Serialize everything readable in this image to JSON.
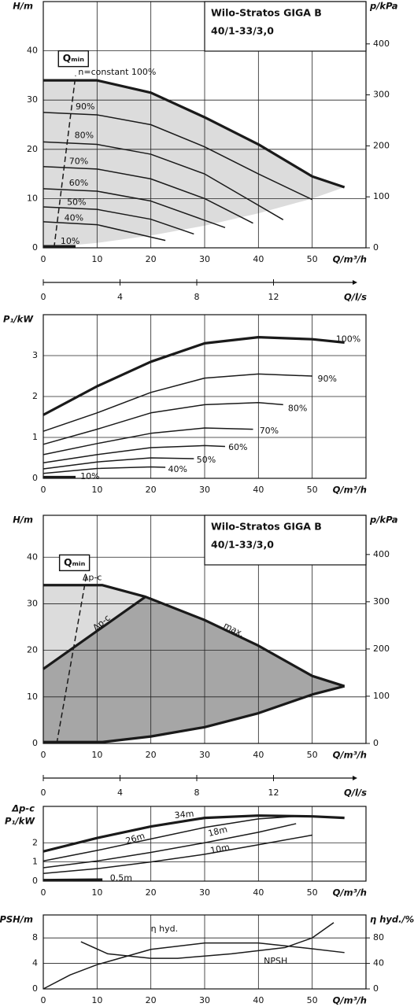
{
  "chart_data": [
    {
      "type": "line",
      "title": "Wilo-Stratos GIGA B",
      "subtitle": "40/1-33/3,0",
      "x_label": "Q/m³/h",
      "y_label": "H/m",
      "y2_label": "p/kPa",
      "xlim": [
        0,
        60
      ],
      "xticks": [
        0,
        10,
        20,
        30,
        40,
        50
      ],
      "ylim": [
        0,
        50
      ],
      "yticks": [
        0,
        10,
        20,
        30,
        40
      ],
      "y2lim": [
        0,
        483
      ],
      "y2ticks": [
        0,
        100,
        200,
        300,
        400
      ],
      "grid": true,
      "regions": [
        {
          "color": "#dcdcdc",
          "x": [
            0,
            10,
            20,
            30,
            40,
            50,
            56,
            50,
            40,
            30,
            20,
            10,
            0
          ],
          "values": [
            34,
            34,
            31.5,
            26.5,
            21,
            14.5,
            12.3,
            10,
            7,
            4.5,
            2.5,
            1,
            0
          ]
        }
      ],
      "series": [
        {
          "name": "n=constant 100%",
          "color": "#1a1a1a",
          "line_width": 3.2,
          "x": [
            0,
            10,
            20,
            30,
            40,
            50,
            56
          ],
          "values": [
            34,
            34,
            31.5,
            26.5,
            21,
            14.5,
            12.3
          ]
        },
        {
          "name": "90%",
          "color": "#1a1a1a",
          "x": [
            0,
            10,
            20,
            30,
            40,
            50
          ],
          "values": [
            27.5,
            27,
            25,
            20.5,
            15,
            9.8
          ]
        },
        {
          "name": "80%",
          "color": "#1a1a1a",
          "x": [
            0,
            10,
            20,
            30,
            44.6
          ],
          "values": [
            21.5,
            21,
            19,
            15,
            5.7
          ]
        },
        {
          "name": "70%",
          "color": "#1a1a1a",
          "x": [
            0,
            10,
            20,
            30,
            39
          ],
          "values": [
            16.5,
            16,
            14,
            10,
            5
          ]
        },
        {
          "name": "60%",
          "color": "#1a1a1a",
          "x": [
            0,
            10,
            20,
            33.8
          ],
          "values": [
            12,
            11.5,
            9.5,
            4.1
          ]
        },
        {
          "name": "50%",
          "color": "#1a1a1a",
          "x": [
            0,
            10,
            20,
            28
          ],
          "values": [
            8.3,
            7.8,
            5.8,
            2.8
          ]
        },
        {
          "name": "40%",
          "color": "#1a1a1a",
          "x": [
            0,
            10,
            22.7
          ],
          "values": [
            5.3,
            4.7,
            1.5
          ]
        },
        {
          "name": "10%",
          "color": "#1a1a1a",
          "line_width": 3.2,
          "x": [
            0,
            6
          ],
          "values": [
            0.3,
            0.3
          ]
        },
        {
          "name": "Qₘᵢₙ",
          "color": "#1a1a1a",
          "dashed": true,
          "x": [
            2,
            6
          ],
          "values": [
            0,
            35
          ]
        }
      ]
    },
    {
      "type": "axis",
      "x_label": "Q/l/s",
      "xlim": [
        0,
        16
      ],
      "xticks": [
        0,
        4,
        8,
        12
      ]
    },
    {
      "type": "line",
      "x_label": "Q/m³/h",
      "y_label": "P₁/kW",
      "xlim": [
        0,
        60
      ],
      "xticks": [
        0,
        10,
        20,
        30,
        40,
        50
      ],
      "ylim": [
        0,
        4
      ],
      "yticks": [
        0,
        1,
        2,
        3
      ],
      "grid": true,
      "series": [
        {
          "name": "100%",
          "color": "#1a1a1a",
          "line_width": 3.2,
          "x": [
            0,
            10,
            20,
            30,
            40,
            50,
            56
          ],
          "values": [
            1.55,
            2.25,
            2.85,
            3.3,
            3.45,
            3.4,
            3.32
          ]
        },
        {
          "name": "90%",
          "color": "#1a1a1a",
          "x": [
            0,
            10,
            20,
            30,
            40,
            50
          ],
          "values": [
            1.15,
            1.6,
            2.1,
            2.45,
            2.55,
            2.5
          ]
        },
        {
          "name": "80%",
          "color": "#1a1a1a",
          "x": [
            0,
            10,
            20,
            30,
            40,
            44.6
          ],
          "values": [
            0.83,
            1.2,
            1.6,
            1.8,
            1.85,
            1.8
          ]
        },
        {
          "name": "70%",
          "color": "#1a1a1a",
          "x": [
            0,
            10,
            20,
            30,
            39
          ],
          "values": [
            0.58,
            0.85,
            1.1,
            1.23,
            1.2
          ]
        },
        {
          "name": "60%",
          "color": "#1a1a1a",
          "x": [
            0,
            10,
            20,
            30,
            33.8
          ],
          "values": [
            0.38,
            0.58,
            0.75,
            0.8,
            0.78
          ]
        },
        {
          "name": "50%",
          "color": "#1a1a1a",
          "x": [
            0,
            10,
            20,
            28
          ],
          "values": [
            0.23,
            0.4,
            0.5,
            0.48
          ]
        },
        {
          "name": "40%",
          "color": "#1a1a1a",
          "x": [
            0,
            10,
            20,
            22.7
          ],
          "values": [
            0.12,
            0.24,
            0.28,
            0.27
          ]
        },
        {
          "name": "10%",
          "color": "#1a1a1a",
          "line_width": 3.2,
          "x": [
            0,
            6
          ],
          "values": [
            0.03,
            0.03
          ]
        }
      ]
    },
    {
      "type": "line",
      "title": "Wilo-Stratos GIGA B",
      "subtitle": "40/1-33/3,0",
      "x_label": "Q/m³/h",
      "y_label": "H/m",
      "y2_label": "p/kPa",
      "xlim": [
        0,
        60
      ],
      "xticks": [
        0,
        10,
        20,
        30,
        40,
        50
      ],
      "ylim": [
        0,
        49
      ],
      "yticks": [
        0,
        10,
        20,
        30,
        40
      ],
      "y2lim": [
        0,
        483
      ],
      "y2ticks": [
        0,
        100,
        200,
        300,
        400
      ],
      "grid": true,
      "regions": [
        {
          "color": "#dcdcdc",
          "x": [
            0,
            0,
            11,
            19
          ],
          "values": [
            16,
            34,
            34,
            31.5
          ]
        },
        {
          "color": "#a6a6a6",
          "x": [
            0,
            19,
            30,
            40,
            50,
            56,
            50,
            40,
            30,
            20,
            11,
            0
          ],
          "values": [
            16,
            31.5,
            26.5,
            21,
            14.5,
            12.3,
            10.5,
            6.5,
            3.5,
            1.5,
            0.3,
            0.3
          ]
        }
      ],
      "annotations": [
        "Δp-c"
      ],
      "series": [
        {
          "name": "max.",
          "color": "#1a1a1a",
          "line_width": 3.2,
          "x": [
            0,
            11,
            19,
            30,
            40,
            50,
            56
          ],
          "values": [
            34,
            34,
            31.5,
            26.5,
            21,
            14.5,
            12.3
          ]
        },
        {
          "name": "Δp-c",
          "color": "#1a1a1a",
          "line_width": 3.2,
          "x": [
            0,
            19
          ],
          "values": [
            16,
            31.5
          ]
        },
        {
          "color": "#1a1a1a",
          "line_width": 3.2,
          "x": [
            0,
            11,
            20,
            30,
            40,
            50,
            56
          ],
          "values": [
            0.3,
            0.3,
            1.5,
            3.5,
            6.5,
            10.5,
            12.3
          ]
        },
        {
          "name": "Qₘᵢₙ",
          "color": "#1a1a1a",
          "dashed": true,
          "x": [
            2.5,
            8
          ],
          "values": [
            0,
            36
          ]
        }
      ]
    },
    {
      "type": "axis",
      "x_label": "Q/l/s",
      "xlim": [
        0,
        16
      ],
      "xticks": [
        0,
        4,
        8,
        12
      ]
    },
    {
      "type": "line",
      "x_label": "Q/m³/h",
      "y_label": [
        "Δp-c",
        "P₁/kW"
      ],
      "xlim": [
        0,
        60
      ],
      "xticks": [
        0,
        10,
        20,
        30,
        40,
        50
      ],
      "ylim": [
        0,
        3.9
      ],
      "yticks": [
        0,
        1,
        2
      ],
      "grid": true,
      "series": [
        {
          "name": "34m",
          "color": "#1a1a1a",
          "line_width": 3.2,
          "x": [
            0,
            10,
            20,
            30,
            40,
            50,
            56
          ],
          "values": [
            1.55,
            2.25,
            2.85,
            3.3,
            3.42,
            3.38,
            3.3
          ]
        },
        {
          "name": "26m",
          "color": "#1a1a1a",
          "x": [
            0,
            10,
            20,
            30,
            40,
            47
          ],
          "values": [
            1.05,
            1.6,
            2.2,
            2.8,
            3.25,
            3.38
          ]
        },
        {
          "name": "18m",
          "color": "#1a1a1a",
          "x": [
            0,
            10,
            20,
            30,
            40,
            47
          ],
          "values": [
            0.7,
            1.05,
            1.5,
            2.0,
            2.55,
            3.0
          ]
        },
        {
          "name": "10m",
          "color": "#1a1a1a",
          "x": [
            0,
            10,
            20,
            30,
            40,
            50
          ],
          "values": [
            0.4,
            0.65,
            1.0,
            1.4,
            1.9,
            2.4
          ]
        },
        {
          "name": "0,5m",
          "color": "#1a1a1a",
          "line_width": 3.2,
          "x": [
            0,
            11
          ],
          "values": [
            0.05,
            0.08
          ]
        }
      ]
    },
    {
      "type": "line",
      "x_label": "Q/m³/h",
      "y_label": "NPSH/m",
      "y2_label": "η hyd./%",
      "xlim": [
        0,
        60
      ],
      "xticks": [
        0,
        10,
        20,
        30,
        40,
        50
      ],
      "ylim": [
        0,
        11.6
      ],
      "yticks": [
        0,
        4,
        8
      ],
      "y2lim": [
        0,
        116
      ],
      "y2ticks": [
        0,
        40,
        80
      ],
      "grid": true,
      "series": [
        {
          "name": "η hyd.",
          "color": "#1a1a1a",
          "axis": "y2",
          "x": [
            0,
            5,
            10,
            20,
            30,
            40,
            50,
            56
          ],
          "values": [
            0,
            22,
            38,
            62,
            72,
            72,
            63,
            57
          ]
        },
        {
          "name": "NPSH",
          "color": "#1a1a1a",
          "x": [
            7,
            12,
            20,
            25,
            35,
            45,
            50,
            54
          ],
          "values": [
            7.4,
            5.5,
            4.8,
            4.8,
            5.5,
            6.5,
            8,
            10.4
          ]
        }
      ]
    }
  ]
}
